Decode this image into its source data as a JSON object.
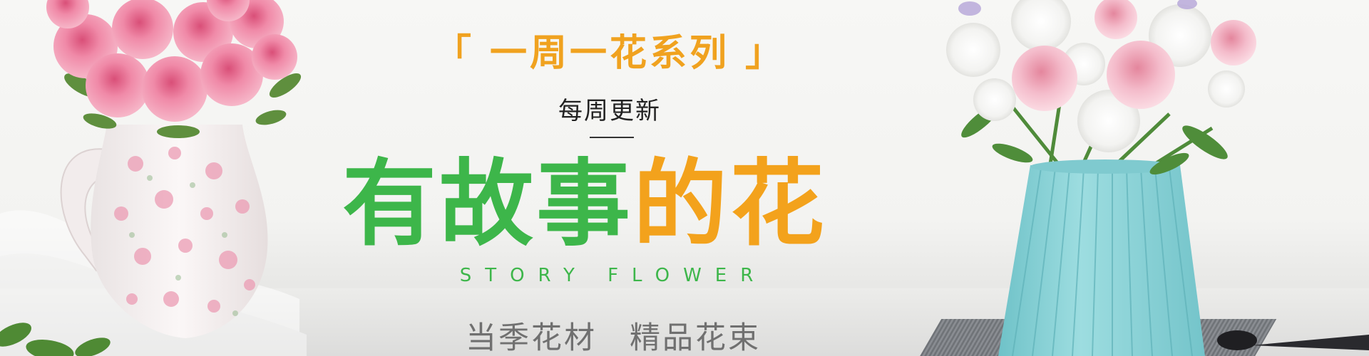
{
  "banner": {
    "series_title": "「 一周一花系列 」",
    "weekly_update": "每周更新",
    "headline_green": "有故事",
    "headline_orange": "的花",
    "headline_en": "STORY FLOWER",
    "tagline": "当季花材　精品花束"
  },
  "colors": {
    "green": "#3db64a",
    "orange": "#f3a21c",
    "gray_text": "#707070",
    "vase_blue": "#8fd3d7",
    "rose_pink": "#ee7e9c"
  }
}
